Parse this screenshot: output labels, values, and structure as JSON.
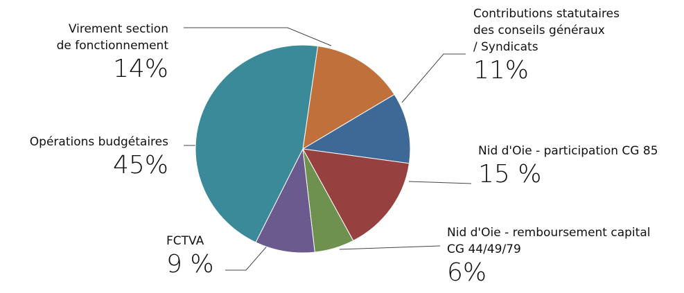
{
  "chart_data": {
    "type": "pie",
    "categories": [
      "Virement section\nde fonctionnement",
      "Contributions statutaires\ndes conseils généraux\n / Syndicats",
      "Nid d'Oie - participation CG 85",
      "Nid d'Oie - remboursement capital\nCG 44/49/79",
      "FCTVA",
      "Opérations budgétaires"
    ],
    "values": [
      14,
      11,
      15,
      6,
      9,
      45
    ],
    "value_labels": [
      "14%",
      "11%",
      "15 %",
      "6%",
      "9 %",
      "45%"
    ],
    "colors": [
      "#c0703a",
      "#3e6896",
      "#96403f",
      "#6f9150",
      "#6a5a8e",
      "#3a8a99"
    ]
  }
}
